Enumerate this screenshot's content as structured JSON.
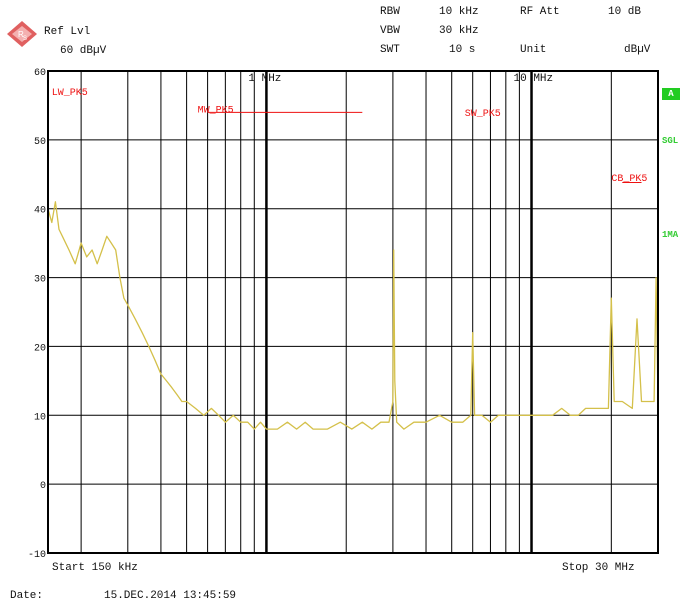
{
  "header": {
    "ref_lvl_label": "Ref Lvl",
    "ref_lvl_value": "60 dBµV",
    "rbw_label": "RBW",
    "rbw_value": "10 kHz",
    "vbw_label": "VBW",
    "vbw_value": "30 kHz",
    "swt_label": "SWT",
    "swt_value": "10 s",
    "rf_att_label": "RF Att",
    "rf_att_value": "10 dB",
    "unit_label": "Unit",
    "unit_value": "dBµV"
  },
  "side_labels": {
    "marker_badge": "A",
    "sgl": "SGL",
    "mode": "1MA"
  },
  "footer": {
    "start_label": "Start 150 kHz",
    "stop_label": "Stop 30 MHz",
    "date_label": "Date:",
    "date_value": "15.DEC.2014  13:45:59"
  },
  "colors": {
    "trace": "#d4c04a",
    "limit_lines": "#ee1111",
    "grid": "#000000",
    "badge": "#22cc22"
  },
  "chart_data": {
    "type": "line",
    "x_scale": "log",
    "x_unit": "Hz",
    "xlim": [
      150000,
      30000000
    ],
    "ylim": [
      -10,
      60
    ],
    "y_ticks": [
      60,
      50,
      40,
      30,
      20,
      10,
      0,
      -10
    ],
    "grid": true,
    "x_markers": [
      {
        "label": "1 MHz",
        "x": 1000000
      },
      {
        "label": "10 MHz",
        "x": 10000000
      }
    ],
    "band_labels": [
      {
        "label": "LW_PK5",
        "x": 155000,
        "y": 56.5
      },
      {
        "label": "MW_PK5",
        "x": 550000,
        "y": 54
      },
      {
        "label": "SW_PK5",
        "x": 5600000,
        "y": 53.5
      },
      {
        "label": "CB_PK5",
        "x": 20000000,
        "y": 44
      }
    ],
    "limit_segments": [
      {
        "x": [
          600000,
          2300000
        ],
        "y": [
          54,
          54
        ]
      },
      {
        "x": [
          22000000,
          26000000
        ],
        "y": [
          43.8,
          43.8
        ]
      }
    ],
    "series": [
      {
        "x": [
          150000,
          155000,
          160000,
          165000,
          170000,
          180000,
          190000,
          200000,
          210000,
          220000,
          230000,
          240000,
          250000,
          260000,
          270000,
          280000,
          290000,
          300000,
          320000,
          340000,
          360000,
          380000,
          400000,
          420000,
          440000,
          460000,
          480000,
          500000,
          540000,
          580000,
          620000,
          660000,
          700000,
          750000,
          800000,
          850000,
          900000,
          950000,
          1000000,
          1100000,
          1200000,
          1300000,
          1400000,
          1500000,
          1700000,
          1900000,
          2100000,
          2300000,
          2500000,
          2700000,
          2900000,
          3000000,
          3020000,
          3050000,
          3100000,
          3300000,
          3600000,
          4000000,
          4500000,
          5000000,
          5500000,
          5900000,
          6000000,
          6100000,
          6500000,
          7000000,
          7500000,
          8000000,
          9000000,
          10000000,
          11000000,
          12000000,
          13000000,
          14000000,
          15000000,
          16000000,
          18000000,
          19500000,
          20000000,
          20500000,
          22000000,
          24000000,
          25000000,
          26000000,
          28000000,
          29000000,
          29500000,
          30000000
        ],
        "y": [
          40,
          38,
          41,
          37,
          36,
          34,
          32,
          35,
          33,
          34,
          32,
          34,
          36,
          35,
          34,
          30,
          27,
          26,
          24,
          22,
          20,
          18,
          16,
          15,
          14,
          13,
          12,
          12,
          11,
          10,
          11,
          10,
          9,
          10,
          9,
          9,
          8,
          9,
          8,
          8,
          9,
          8,
          9,
          8,
          8,
          9,
          8,
          9,
          8,
          9,
          9,
          12,
          34,
          15,
          9,
          8,
          9,
          9,
          10,
          9,
          9,
          10,
          22,
          10,
          10,
          9,
          10,
          10,
          10,
          10,
          10,
          10,
          11,
          10,
          10,
          11,
          11,
          11,
          27,
          12,
          12,
          11,
          24,
          12,
          12,
          12,
          30,
          12
        ]
      }
    ]
  }
}
